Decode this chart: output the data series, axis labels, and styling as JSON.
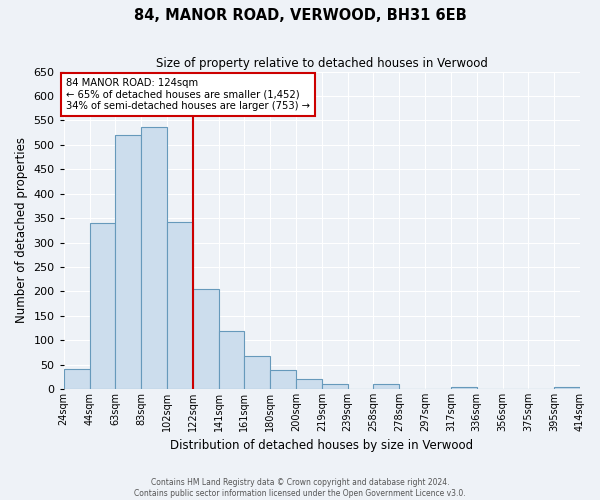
{
  "title": "84, MANOR ROAD, VERWOOD, BH31 6EB",
  "subtitle": "Size of property relative to detached houses in Verwood",
  "xlabel": "Distribution of detached houses by size in Verwood",
  "ylabel": "Number of detached properties",
  "bin_labels": [
    "24sqm",
    "44sqm",
    "63sqm",
    "83sqm",
    "102sqm",
    "122sqm",
    "141sqm",
    "161sqm",
    "180sqm",
    "200sqm",
    "219sqm",
    "239sqm",
    "258sqm",
    "278sqm",
    "297sqm",
    "317sqm",
    "336sqm",
    "356sqm",
    "375sqm",
    "395sqm",
    "414sqm"
  ],
  "bar_heights": [
    42,
    340,
    520,
    537,
    343,
    204,
    119,
    67,
    38,
    20,
    11,
    0,
    10,
    0,
    0,
    4,
    0,
    0,
    0,
    4
  ],
  "bar_color": "#ccdded",
  "bar_edge_color": "#6699bb",
  "property_size_bin": 5,
  "vline_color": "#cc0000",
  "annotation_line1": "84 MANOR ROAD: 124sqm",
  "annotation_line2": "← 65% of detached houses are smaller (1,452)",
  "annotation_line3": "34% of semi-detached houses are larger (753) →",
  "annotation_box_edge_color": "#cc0000",
  "ylim": [
    0,
    650
  ],
  "yticks": [
    0,
    50,
    100,
    150,
    200,
    250,
    300,
    350,
    400,
    450,
    500,
    550,
    600,
    650
  ],
  "bg_color": "#eef2f7",
  "grid_color": "#ffffff",
  "footer_line1": "Contains HM Land Registry data © Crown copyright and database right 2024.",
  "footer_line2": "Contains public sector information licensed under the Open Government Licence v3.0."
}
